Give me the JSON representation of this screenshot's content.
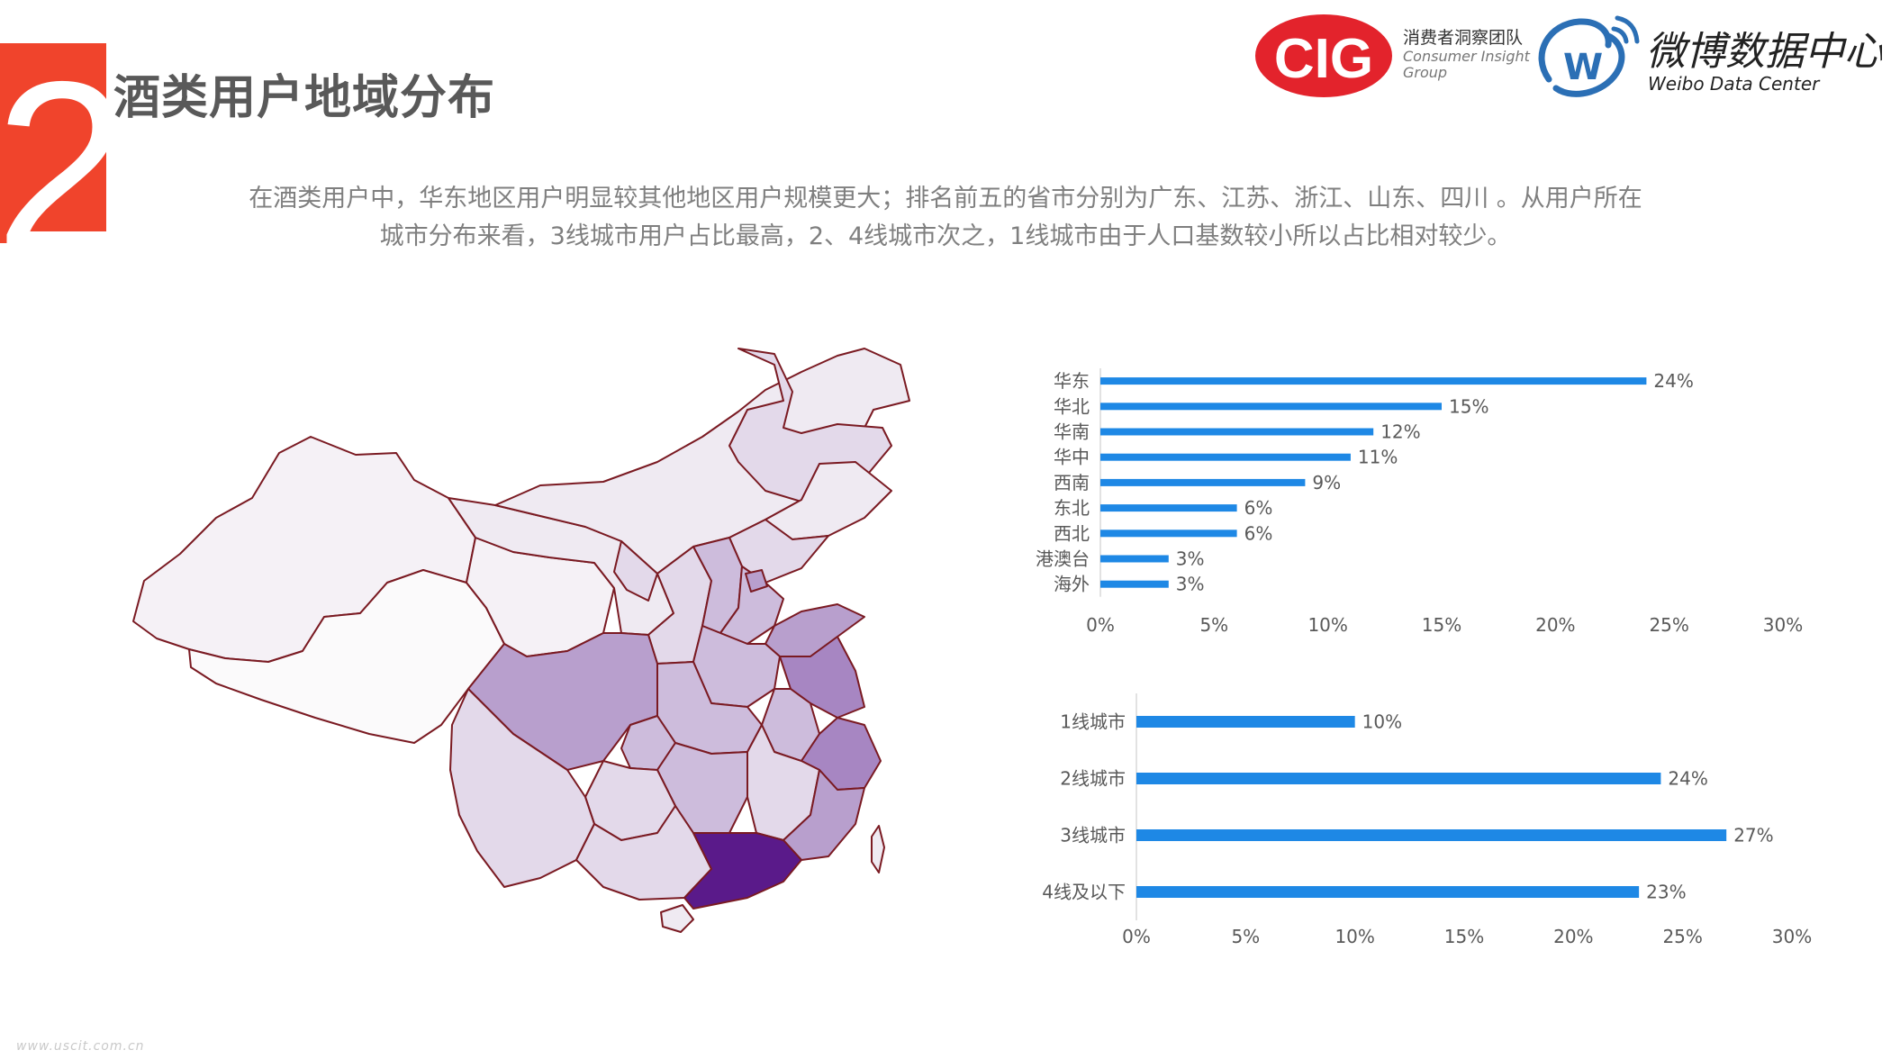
{
  "section": {
    "number": "2",
    "title": "酒类用户地域分布"
  },
  "description": {
    "line1": "在酒类用户中，华东地区用户明显较其他地区用户规模更大；排名前五的省市分别为广东、江苏、浙江、山东、四川 。从用户所在",
    "line2": "城市分布来看，3线城市用户占比最高，2、4线城市次之，1线城市由于人口基数较小所以占比相对较少。"
  },
  "logos": {
    "cig": {
      "mark": "CIG",
      "line1": "消费者洞察团队",
      "line2": "Consumer Insight",
      "line3": "Group",
      "color": "#e3232c"
    },
    "weibo": {
      "mark": "W",
      "title": "微博数据中心",
      "subtitle": "Weibo Data Center",
      "color": "#2b6fb5"
    }
  },
  "map": {
    "colors": {
      "level0": "#fbfafb",
      "level1": "#efeaf2",
      "level2": "#e3d9ea",
      "level3": "#cdbcdc",
      "level4": "#b89fcd",
      "level5": "#a786c2",
      "level6": "#5a1a8a",
      "border": "#7a1a22"
    }
  },
  "watermark": "www.uscit.com.cn",
  "chart_data": [
    {
      "type": "bar",
      "orientation": "horizontal",
      "categories": [
        "华东",
        "华北",
        "华南",
        "华中",
        "西南",
        "东北",
        "西北",
        "港澳台",
        "海外"
      ],
      "values": [
        24,
        15,
        12,
        11,
        9,
        6,
        6,
        3,
        3
      ],
      "value_labels": [
        "24%",
        "15%",
        "12%",
        "11%",
        "9%",
        "6%",
        "6%",
        "3%",
        "3%"
      ],
      "xlim": [
        0,
        30
      ],
      "xticks": [
        "0%",
        "5%",
        "10%",
        "15%",
        "20%",
        "25%",
        "30%"
      ],
      "bar_color": "#1e88e5",
      "grid": false
    },
    {
      "type": "bar",
      "orientation": "horizontal",
      "categories": [
        "1线城市",
        "2线城市",
        "3线城市",
        "4线及以下"
      ],
      "values": [
        10,
        24,
        27,
        23
      ],
      "value_labels": [
        "10%",
        "24%",
        "27%",
        "23%"
      ],
      "xlim": [
        0,
        30
      ],
      "xticks": [
        "0%",
        "5%",
        "10%",
        "15%",
        "20%",
        "25%",
        "30%"
      ],
      "bar_color": "#1e88e5",
      "grid": false
    }
  ]
}
